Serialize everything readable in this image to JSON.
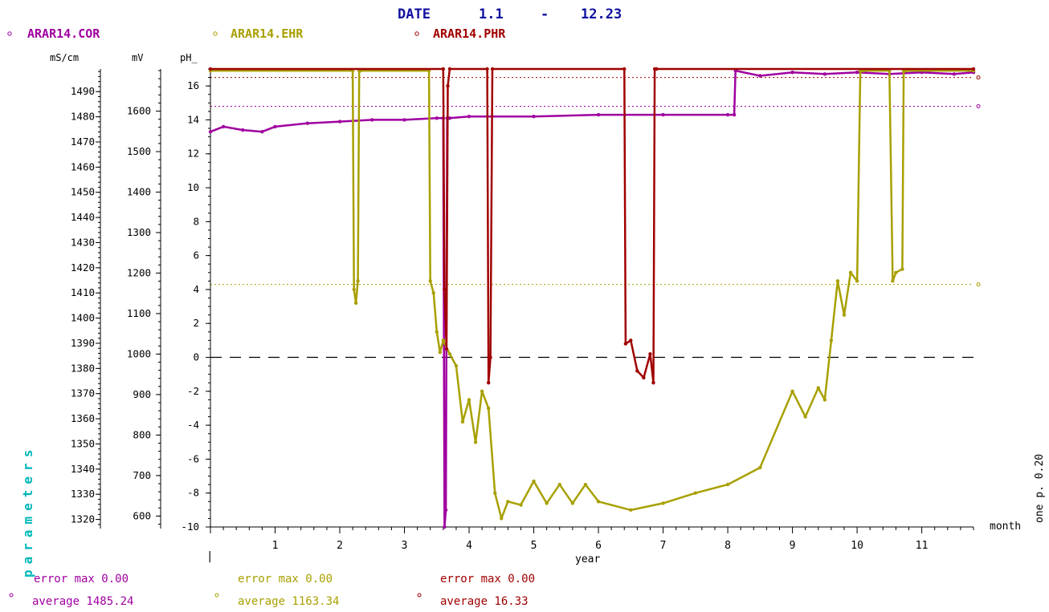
{
  "header": {
    "date_label": "DATE",
    "date_from": "1.1",
    "date_dash": "-",
    "date_to": "12.23"
  },
  "legend": [
    {
      "name": "ARAR14.COR",
      "color": "#a000a0"
    },
    {
      "name": "ARAR14.EHR",
      "color": "#a8a000"
    },
    {
      "name": "ARAR14.PHR",
      "color": "#a00000"
    }
  ],
  "axis_units": {
    "cor": "mS/cm",
    "ehr": "mV",
    "phr": "pH_"
  },
  "side_label": "parameters",
  "right_note": "one p. 0.20",
  "right_unit": "month",
  "x_label": "year",
  "x_start_marker": "|",
  "stats": [
    {
      "error": "error max 0.00",
      "average": "average 1485.24",
      "color": "#a000a0"
    },
    {
      "error": "error max 0.00",
      "average": "average 1163.34",
      "color": "#a8a000"
    },
    {
      "error": "error max 0.00",
      "average": "average 16.33",
      "color": "#a00000"
    }
  ],
  "chart_data": {
    "type": "line",
    "x_axis": {
      "label": "year",
      "range": [
        0,
        11.8
      ],
      "ticks": [
        1,
        2,
        3,
        4,
        5,
        6,
        7,
        8,
        9,
        10,
        11
      ]
    },
    "y_axes": {
      "cor": {
        "unit": "mS/cm",
        "range": [
          1317,
          1499
        ],
        "ticks": [
          1320,
          1330,
          1340,
          1350,
          1360,
          1370,
          1380,
          1390,
          1400,
          1410,
          1420,
          1430,
          1440,
          1450,
          1460,
          1470,
          1480,
          1490
        ]
      },
      "ehr": {
        "unit": "mV",
        "range": [
          573,
          1704
        ],
        "ticks": [
          600,
          700,
          800,
          900,
          1000,
          1100,
          1200,
          1300,
          1400,
          1500,
          1600
        ]
      },
      "phr": {
        "unit": "pH_",
        "range": [
          -10,
          17
        ],
        "ticks": [
          -10,
          -8,
          -6,
          -4,
          -2,
          0,
          2,
          4,
          6,
          8,
          10,
          12,
          14,
          16
        ]
      }
    },
    "reference_lines": [
      {
        "series": "ARAR14.COR",
        "axis": "phr",
        "value": 14.8,
        "style": "dotted"
      },
      {
        "series": "ARAR14.PHR",
        "axis": "phr",
        "value": 16.5,
        "style": "dotted"
      },
      {
        "series": "ARAR14.EHR",
        "axis": "phr",
        "value": 4.3,
        "style": "dotted"
      },
      {
        "series": "zero",
        "axis": "phr",
        "value": 0,
        "style": "dashed"
      }
    ],
    "series": [
      {
        "name": "ARAR14.COR",
        "axis": "phr",
        "color": "#a000a0",
        "x": [
          0,
          0.2,
          0.5,
          0.8,
          1.0,
          1.5,
          2.0,
          2.5,
          3.0,
          3.5,
          3.6,
          3.62,
          3.64,
          3.66,
          3.7,
          4.0,
          5.0,
          6.0,
          7.0,
          8.0,
          8.1,
          8.12,
          8.5,
          9.0,
          9.5,
          10.0,
          10.5,
          11.0,
          11.5,
          11.8
        ],
        "y": [
          13.3,
          13.6,
          13.4,
          13.3,
          13.6,
          13.8,
          13.9,
          14.0,
          14.0,
          14.1,
          14.1,
          -10.0,
          -9.0,
          14.1,
          14.1,
          14.2,
          14.2,
          14.3,
          14.3,
          14.3,
          14.3,
          16.9,
          16.6,
          16.8,
          16.7,
          16.8,
          16.7,
          16.8,
          16.7,
          16.8
        ]
      },
      {
        "name": "ARAR14.EHR",
        "axis": "phr",
        "color": "#a8a000",
        "x": [
          0,
          2.2,
          2.22,
          2.25,
          2.28,
          2.3,
          2.32,
          3.38,
          3.4,
          3.45,
          3.5,
          3.55,
          3.6,
          3.7,
          3.8,
          3.9,
          4.0,
          4.1,
          4.2,
          4.3,
          4.4,
          4.5,
          4.6,
          4.8,
          5.0,
          5.2,
          5.4,
          5.6,
          5.8,
          6.0,
          6.5,
          7.0,
          7.5,
          8.0,
          8.5,
          9.0,
          9.2,
          9.4,
          9.5,
          9.6,
          9.7,
          9.8,
          9.9,
          10.0,
          10.05,
          10.08,
          10.1,
          10.5,
          10.55,
          10.6,
          10.7,
          10.72,
          10.75,
          11.8
        ],
        "y": [
          16.9,
          16.9,
          4.0,
          3.2,
          4.5,
          16.9,
          16.9,
          16.9,
          4.5,
          3.8,
          1.5,
          0.3,
          1.0,
          0.2,
          -0.5,
          -3.8,
          -2.5,
          -5.0,
          -2.0,
          -3.0,
          -8.0,
          -9.5,
          -8.5,
          -8.7,
          -7.3,
          -8.6,
          -7.5,
          -8.6,
          -7.5,
          -8.5,
          -9.0,
          -8.6,
          -8.0,
          -7.5,
          -6.5,
          -2.0,
          -3.5,
          -1.8,
          -2.5,
          1.0,
          4.5,
          2.5,
          5.0,
          4.5,
          16.9,
          16.9,
          16.9,
          16.9,
          4.5,
          5.0,
          5.2,
          16.9,
          16.9,
          16.9
        ]
      },
      {
        "name": "ARAR14.PHR",
        "axis": "phr",
        "color": "#a00000",
        "x": [
          0,
          3.6,
          3.62,
          3.65,
          3.67,
          3.7,
          4.28,
          4.3,
          4.33,
          4.36,
          6.4,
          6.42,
          6.5,
          6.6,
          6.7,
          6.8,
          6.85,
          6.87,
          6.9,
          11.8
        ],
        "y": [
          17.0,
          17.0,
          4.0,
          0.5,
          16.0,
          17.0,
          17.0,
          -1.5,
          0.0,
          17.0,
          17.0,
          0.8,
          1.0,
          -0.8,
          -1.2,
          0.2,
          -1.5,
          17.0,
          17.0,
          17.0
        ]
      }
    ]
  }
}
